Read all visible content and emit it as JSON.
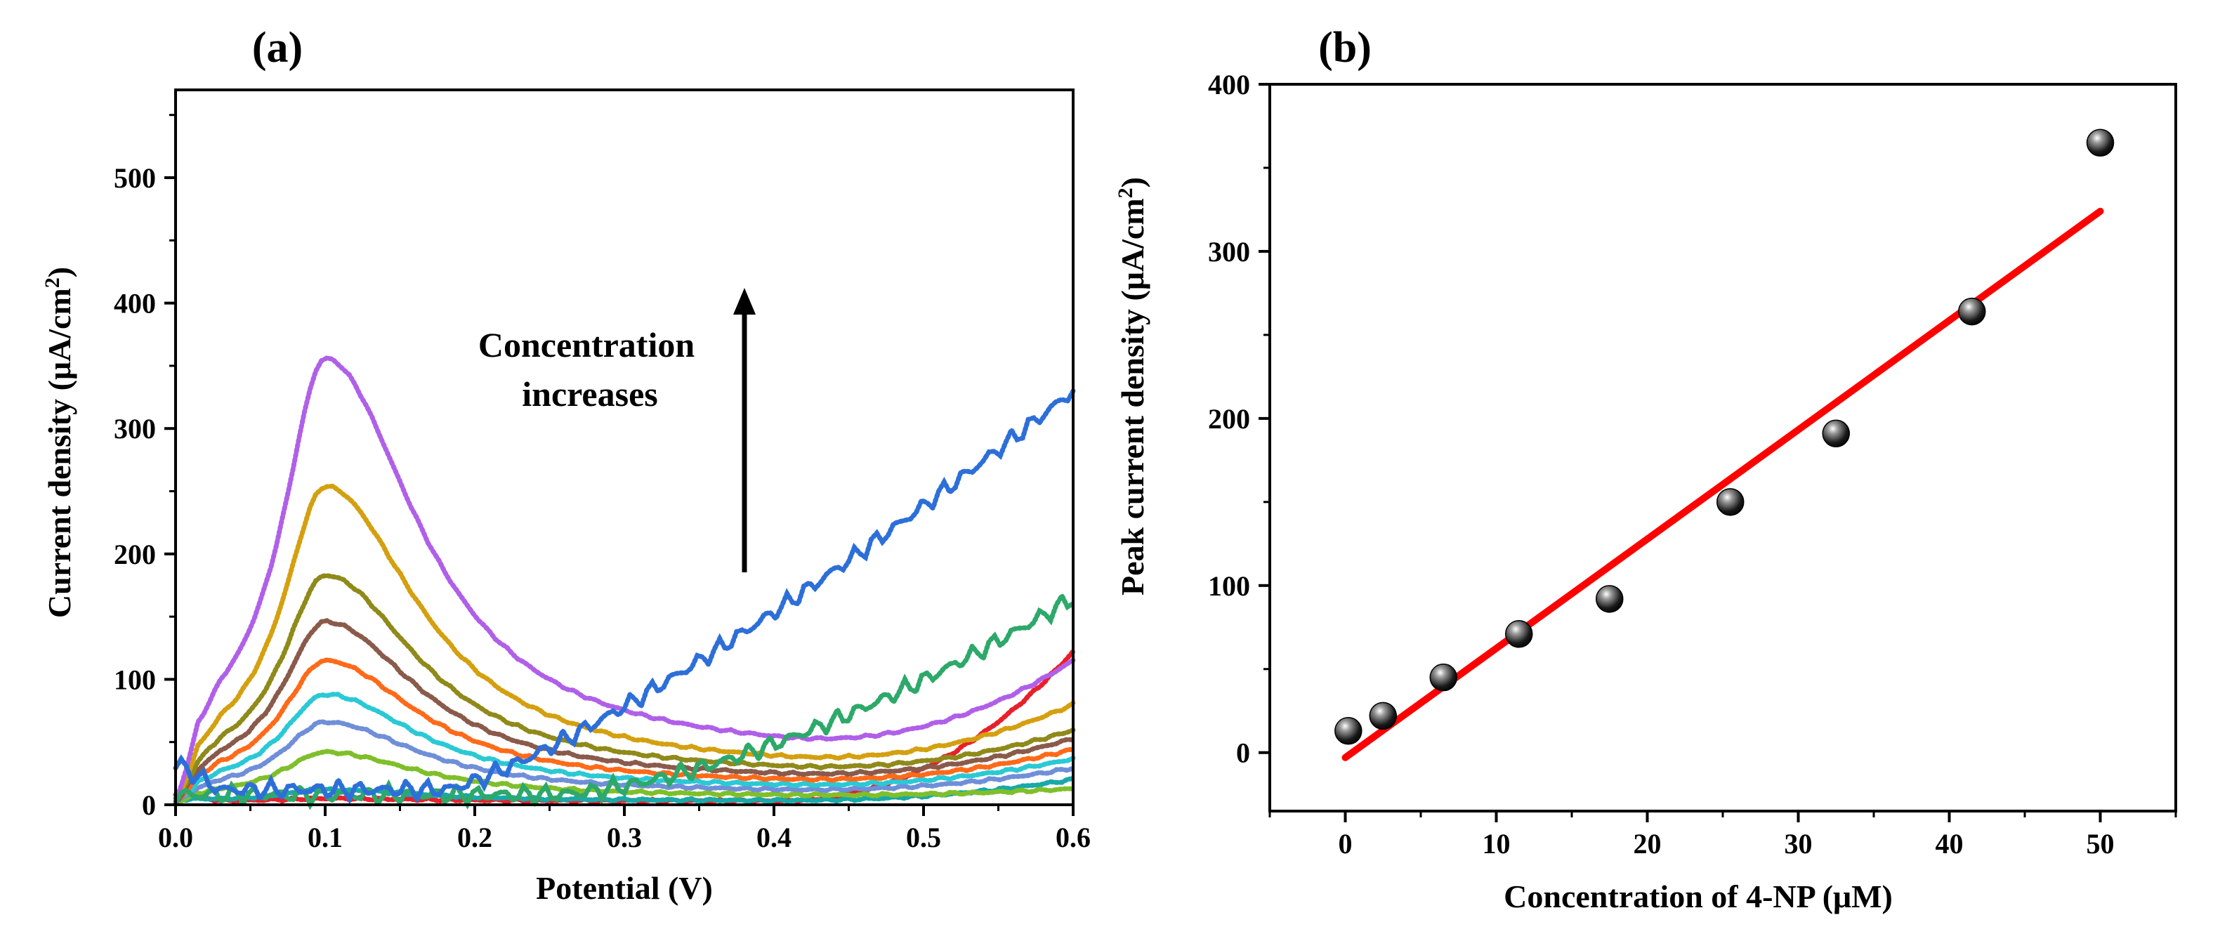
{
  "chart_data": [
    {
      "type": "line",
      "panel_label": "(a)",
      "xlabel": "Potential (V)",
      "ylabel_prefix": "Current density (μA/cm",
      "ylabel_sup": "2",
      "ylabel_suffix": ")",
      "xlim": [
        0.0,
        0.6
      ],
      "ylim": [
        0,
        570
      ],
      "xticks": [
        "0.0",
        "0.1",
        "0.2",
        "0.3",
        "0.4",
        "0.5",
        "0.6"
      ],
      "yticks": [
        "0",
        "100",
        "200",
        "300",
        "400",
        "500"
      ],
      "annotation": [
        "Concentration",
        "increases"
      ],
      "grid": false,
      "legend": "none",
      "series": [
        {
          "color": "#e8202a",
          "peak": 5,
          "base": 3,
          "end": 122,
          "tail_start": 0.4,
          "tail_power": 2.2,
          "start_value": 8
        },
        {
          "color": "#18a8a8",
          "peak": 12,
          "base": 3,
          "end": 20,
          "tail_start": 0.4,
          "tail_power": 2.2,
          "start_value": 4
        },
        {
          "color": "#7fbf2a",
          "peak": 42,
          "base": 6,
          "end": 12,
          "tail_start": 0.4,
          "tail_power": 2.2,
          "start_value": 2
        },
        {
          "color": "#6f8fd8",
          "peak": 66,
          "base": 9,
          "end": 28,
          "tail_start": 0.4,
          "tail_power": 2.2,
          "start_value": 2
        },
        {
          "color": "#2ac9d4",
          "peak": 88,
          "base": 12,
          "end": 35,
          "tail_start": 0.4,
          "tail_power": 2.2,
          "start_value": 2
        },
        {
          "color": "#ff6a1a",
          "peak": 115,
          "base": 15,
          "end": 42,
          "tail_start": 0.4,
          "tail_power": 2.2,
          "start_value": 2
        },
        {
          "color": "#8a5a4a",
          "peak": 146,
          "base": 18,
          "end": 50,
          "tail_start": 0.4,
          "tail_power": 2.2,
          "start_value": 2
        },
        {
          "color": "#8f8a1a",
          "peak": 183,
          "base": 22,
          "end": 56,
          "tail_start": 0.4,
          "tail_power": 2.2,
          "start_value": 2
        },
        {
          "color": "#d4a010",
          "peak": 254,
          "base": 26,
          "end": 75,
          "tail_start": 0.4,
          "tail_power": 2.2,
          "start_value": 2
        },
        {
          "color": "#b060e8",
          "peak": 356,
          "base": 36,
          "end": 108,
          "tail_start": 0.4,
          "tail_power": 2.2,
          "start_value": 2
        },
        {
          "color": "#2ea86a",
          "peak": 0,
          "base": 8,
          "end": 165,
          "tail_start": 0.25,
          "tail_power": 1.6,
          "start_value": 8
        },
        {
          "color": "#2e6fd8",
          "peak": 0,
          "base": 12,
          "end": 330,
          "tail_start": 0.18,
          "tail_power": 1.25,
          "start_value": 33
        }
      ]
    },
    {
      "type": "scatter",
      "panel_label": "(b)",
      "xlabel": "Concentration of 4-NP (μM)",
      "ylabel_prefix": "Peak current density (μA/cm",
      "ylabel_sup": "2",
      "ylabel_suffix": ")",
      "xlim": [
        -5,
        55
      ],
      "ylim": [
        -35,
        400
      ],
      "xticks": [
        "0",
        "10",
        "20",
        "30",
        "40",
        "50"
      ],
      "yticks": [
        "0",
        "100",
        "200",
        "300",
        "400"
      ],
      "grid": false,
      "legend": "none",
      "points": {
        "x": [
          0.2,
          2.5,
          6.5,
          11.5,
          17.5,
          25.5,
          32.5,
          41.5,
          50
        ],
        "y": [
          13,
          22,
          45,
          71,
          92,
          150,
          191,
          264,
          365
        ]
      },
      "fit_line": {
        "color": "#ff0000",
        "x": [
          0,
          50
        ],
        "y": [
          -3,
          324
        ]
      }
    }
  ]
}
